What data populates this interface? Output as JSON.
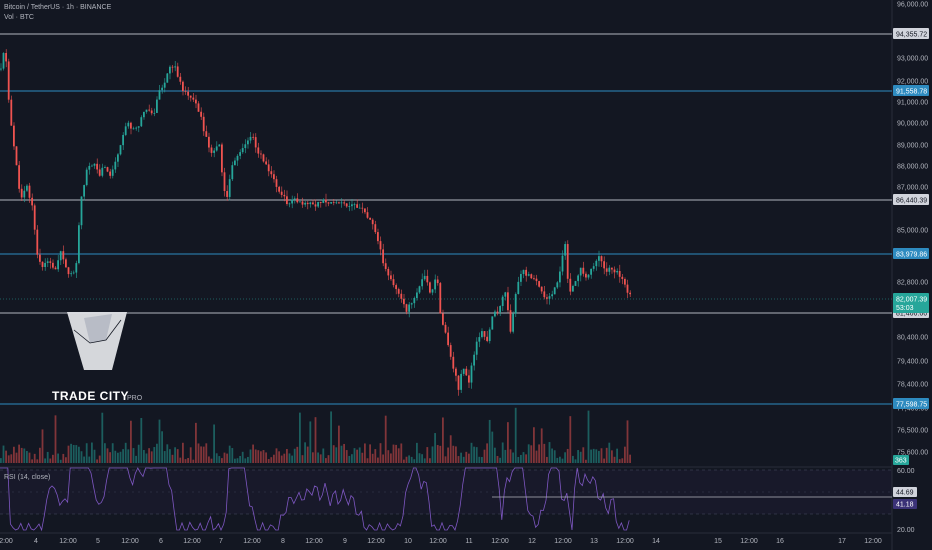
{
  "header": {
    "symbol_line": "Bitcoin / TetherUS · 1h · BINANCE",
    "volume_label": "Vol · BTC"
  },
  "logo": {
    "name": "TRADE CITY",
    "suffix": "PRO"
  },
  "rsi": {
    "label": "RSI (14, close)",
    "value_1": "44.69",
    "value_2": "41.18",
    "axis_ticks": [
      "60.00",
      "20.00"
    ],
    "color": "#7e57c2"
  },
  "volume_badge": "363",
  "colors": {
    "background": "#131722",
    "up": "#26a69a",
    "down": "#ef5350",
    "blue_level": "#2e8bc0",
    "white_level": "#b2b5be"
  },
  "chart_data": {
    "type": "candlestick",
    "y_axis_ticks": [
      "96,000.00",
      "93,000.00",
      "92,000.00",
      "91,000.00",
      "90,000.00",
      "89,000.00",
      "88,000.00",
      "87,000.00",
      "85,000.00",
      "82,800.00",
      "80,400.00",
      "79,400.00",
      "78,400.00",
      "77,400.00",
      "76,500.00",
      "75,600.00"
    ],
    "x_axis_ticks": [
      "2:00",
      "4",
      "12:00",
      "5",
      "12:00",
      "6",
      "12:00",
      "7",
      "12:00",
      "8",
      "12:00",
      "9",
      "12:00",
      "10",
      "12:00",
      "11",
      "12:00",
      "12",
      "12:00",
      "13",
      "12:00",
      "14",
      "15",
      "12:00",
      "16",
      "17",
      "12:00"
    ],
    "levels": [
      {
        "price": "94,355.72",
        "kind": "white"
      },
      {
        "price": "91,558.78",
        "kind": "blue"
      },
      {
        "price": "86,440.39",
        "kind": "white"
      },
      {
        "price": "83,979.86",
        "kind": "blue"
      },
      {
        "price": "81,466.66",
        "kind": "white"
      },
      {
        "price": "77,598.75",
        "kind": "blue"
      }
    ],
    "current_price": "82,007.39",
    "countdown": "53:03",
    "path": [
      [
        0,
        92500
      ],
      [
        4,
        93600
      ],
      [
        8,
        91000
      ],
      [
        12,
        89300
      ],
      [
        16,
        87800
      ],
      [
        20,
        86400
      ],
      [
        26,
        87000
      ],
      [
        32,
        86000
      ],
      [
        36,
        84000
      ],
      [
        42,
        83400
      ],
      [
        48,
        83700
      ],
      [
        54,
        83200
      ],
      [
        60,
        84000
      ],
      [
        66,
        83300
      ],
      [
        72,
        83000
      ],
      [
        76,
        83800
      ],
      [
        80,
        86500
      ],
      [
        86,
        87800
      ],
      [
        92,
        88200
      ],
      [
        98,
        87600
      ],
      [
        104,
        88000
      ],
      [
        110,
        87500
      ],
      [
        116,
        88500
      ],
      [
        122,
        89500
      ],
      [
        128,
        90000
      ],
      [
        134,
        89600
      ],
      [
        140,
        90200
      ],
      [
        146,
        90800
      ],
      [
        152,
        90300
      ],
      [
        158,
        91500
      ],
      [
        164,
        92000
      ],
      [
        170,
        92800
      ],
      [
        176,
        92400
      ],
      [
        182,
        91600
      ],
      [
        188,
        91200
      ],
      [
        194,
        91000
      ],
      [
        200,
        90200
      ],
      [
        206,
        89200
      ],
      [
        212,
        88500
      ],
      [
        218,
        89300
      ],
      [
        222,
        87000
      ],
      [
        226,
        86600
      ],
      [
        232,
        88200
      ],
      [
        238,
        88600
      ],
      [
        244,
        89000
      ],
      [
        250,
        89500
      ],
      [
        256,
        88800
      ],
      [
        262,
        88300
      ],
      [
        268,
        87800
      ],
      [
        274,
        87200
      ],
      [
        280,
        86700
      ],
      [
        286,
        86300
      ],
      [
        292,
        86500
      ],
      [
        298,
        86300
      ],
      [
        304,
        86200
      ],
      [
        310,
        86400
      ],
      [
        316,
        86200
      ],
      [
        322,
        86500
      ],
      [
        328,
        86300
      ],
      [
        334,
        86400
      ],
      [
        340,
        86300
      ],
      [
        346,
        86200
      ],
      [
        352,
        86300
      ],
      [
        358,
        86100
      ],
      [
        364,
        85800
      ],
      [
        370,
        85400
      ],
      [
        376,
        84600
      ],
      [
        382,
        83700
      ],
      [
        388,
        83000
      ],
      [
        394,
        82500
      ],
      [
        400,
        82100
      ],
      [
        406,
        81600
      ],
      [
        412,
        81900
      ],
      [
        418,
        82600
      ],
      [
        424,
        83000
      ],
      [
        430,
        82200
      ],
      [
        436,
        83300
      ],
      [
        440,
        81200
      ],
      [
        446,
        80300
      ],
      [
        452,
        79200
      ],
      [
        458,
        78200
      ],
      [
        462,
        79200
      ],
      [
        468,
        78500
      ],
      [
        474,
        79900
      ],
      [
        480,
        80600
      ],
      [
        486,
        80300
      ],
      [
        492,
        81300
      ],
      [
        498,
        81600
      ],
      [
        504,
        82500
      ],
      [
        510,
        80600
      ],
      [
        516,
        82600
      ],
      [
        522,
        83300
      ],
      [
        528,
        83000
      ],
      [
        534,
        82900
      ],
      [
        540,
        82300
      ],
      [
        546,
        82000
      ],
      [
        552,
        82300
      ],
      [
        558,
        82900
      ],
      [
        564,
        84500
      ],
      [
        568,
        82200
      ],
      [
        574,
        82900
      ],
      [
        580,
        83300
      ],
      [
        586,
        83000
      ],
      [
        592,
        83500
      ],
      [
        598,
        83800
      ],
      [
        604,
        83300
      ],
      [
        610,
        83500
      ],
      [
        616,
        83200
      ],
      [
        622,
        83000
      ],
      [
        626,
        82500
      ],
      [
        630,
        82007
      ]
    ]
  }
}
